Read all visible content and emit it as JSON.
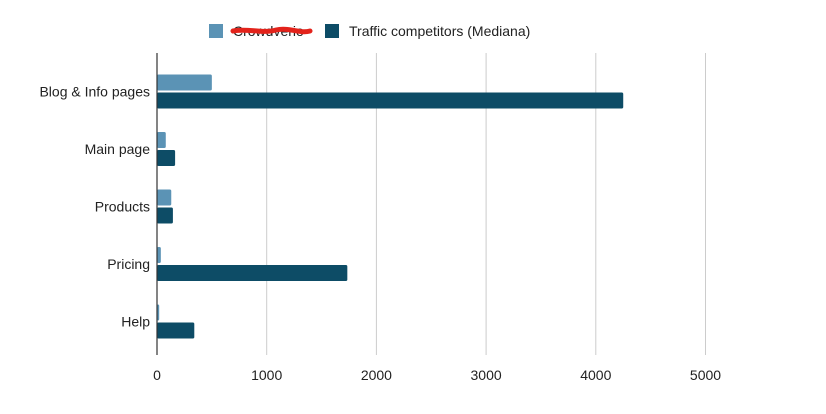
{
  "chart_data": {
    "type": "bar",
    "orientation": "horizontal",
    "categories": [
      "Blog & Info pages",
      "Main page",
      "Products",
      "Pricing",
      "Help"
    ],
    "series": [
      {
        "name": "Crowdverio",
        "color": "#5b93b5",
        "label_redacted": true,
        "values": [
          500,
          80,
          130,
          35,
          20
        ]
      },
      {
        "name": "Traffic competitors (Mediana)",
        "color": "#0d4c66",
        "values": [
          4250,
          165,
          145,
          1735,
          340
        ]
      }
    ],
    "xlim": [
      0,
      5000
    ],
    "xticks": [
      0,
      1000,
      2000,
      3000,
      4000,
      5000
    ],
    "grid": "vertical",
    "legend_position": "top"
  }
}
